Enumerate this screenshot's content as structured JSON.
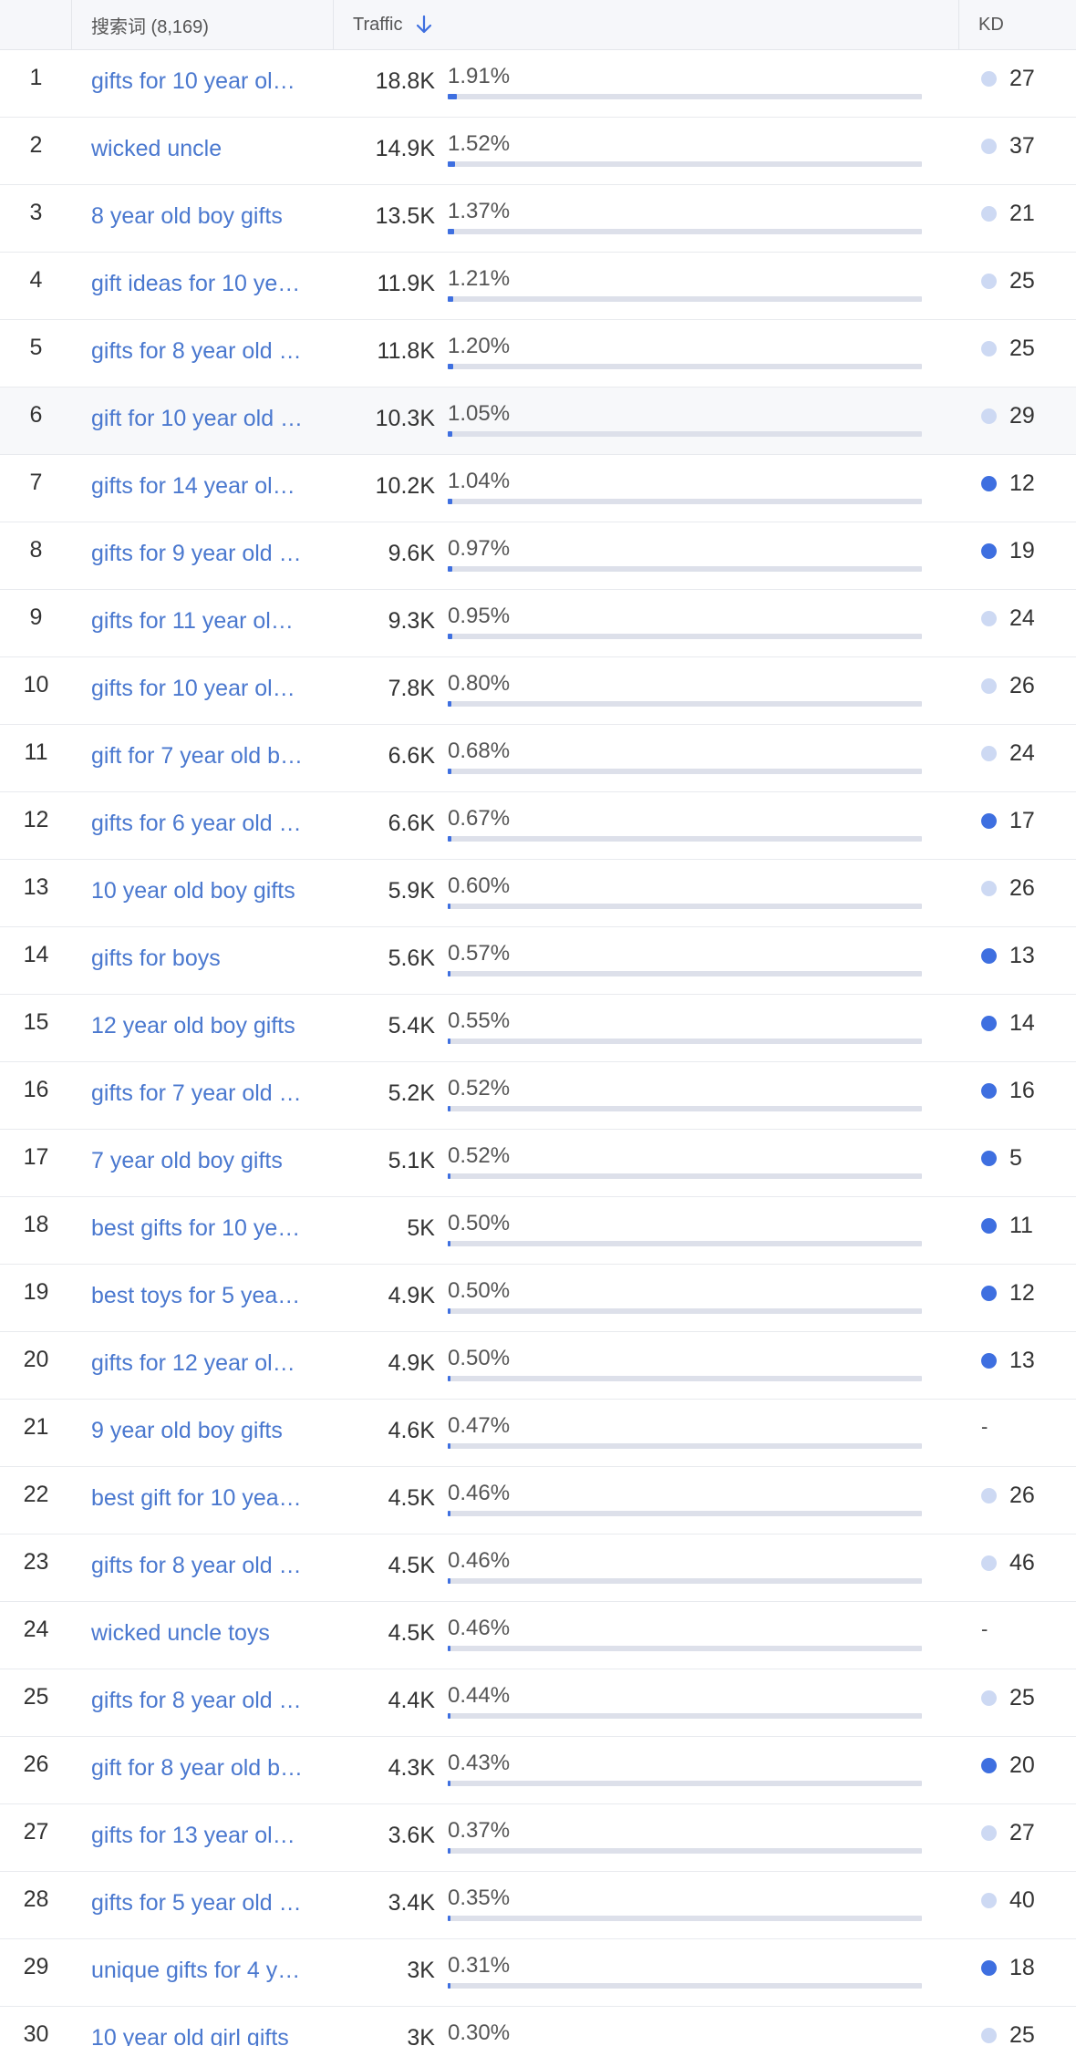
{
  "header": {
    "keyword_col": "搜索词 (8,169)",
    "traffic_col": "Traffic",
    "kd_col": "KD",
    "sort_icon": "arrow-down-icon"
  },
  "colors": {
    "link": "#4a78cf",
    "bar": "#3e6fe0",
    "bar_track": "#dde0ea",
    "dot_light": "#cdd9f3",
    "dot_dark": "#3e6fe0"
  },
  "rows": [
    {
      "num": "1",
      "keyword": "gifts for 10 year ol…",
      "volume": "18.8K",
      "share": "1.91%",
      "share_value": 1.91,
      "kd": "27",
      "kd_level": "light"
    },
    {
      "num": "2",
      "keyword": "wicked uncle",
      "volume": "14.9K",
      "share": "1.52%",
      "share_value": 1.52,
      "kd": "37",
      "kd_level": "light"
    },
    {
      "num": "3",
      "keyword": "8 year old boy gifts",
      "volume": "13.5K",
      "share": "1.37%",
      "share_value": 1.37,
      "kd": "21",
      "kd_level": "light"
    },
    {
      "num": "4",
      "keyword": "gift ideas for 10 ye…",
      "volume": "11.9K",
      "share": "1.21%",
      "share_value": 1.21,
      "kd": "25",
      "kd_level": "light"
    },
    {
      "num": "5",
      "keyword": "gifts for 8 year old …",
      "volume": "11.8K",
      "share": "1.20%",
      "share_value": 1.2,
      "kd": "25",
      "kd_level": "light"
    },
    {
      "num": "6",
      "keyword": "gift for 10 year old …",
      "volume": "10.3K",
      "share": "1.05%",
      "share_value": 1.05,
      "kd": "29",
      "kd_level": "light"
    },
    {
      "num": "7",
      "keyword": "gifts for 14 year ol…",
      "volume": "10.2K",
      "share": "1.04%",
      "share_value": 1.04,
      "kd": "12",
      "kd_level": "dark"
    },
    {
      "num": "8",
      "keyword": "gifts for 9 year old …",
      "volume": "9.6K",
      "share": "0.97%",
      "share_value": 0.97,
      "kd": "19",
      "kd_level": "dark"
    },
    {
      "num": "9",
      "keyword": "gifts for 11 year ol…",
      "volume": "9.3K",
      "share": "0.95%",
      "share_value": 0.95,
      "kd": "24",
      "kd_level": "light"
    },
    {
      "num": "10",
      "keyword": "gifts for 10 year ol…",
      "volume": "7.8K",
      "share": "0.80%",
      "share_value": 0.8,
      "kd": "26",
      "kd_level": "light"
    },
    {
      "num": "11",
      "keyword": "gift for 7 year old b…",
      "volume": "6.6K",
      "share": "0.68%",
      "share_value": 0.68,
      "kd": "24",
      "kd_level": "light"
    },
    {
      "num": "12",
      "keyword": "gifts for 6 year old …",
      "volume": "6.6K",
      "share": "0.67%",
      "share_value": 0.67,
      "kd": "17",
      "kd_level": "dark"
    },
    {
      "num": "13",
      "keyword": "10 year old boy gifts",
      "volume": "5.9K",
      "share": "0.60%",
      "share_value": 0.6,
      "kd": "26",
      "kd_level": "light"
    },
    {
      "num": "14",
      "keyword": "gifts for boys",
      "volume": "5.6K",
      "share": "0.57%",
      "share_value": 0.57,
      "kd": "13",
      "kd_level": "dark"
    },
    {
      "num": "15",
      "keyword": "12 year old boy gifts",
      "volume": "5.4K",
      "share": "0.55%",
      "share_value": 0.55,
      "kd": "14",
      "kd_level": "dark"
    },
    {
      "num": "16",
      "keyword": "gifts for 7 year old …",
      "volume": "5.2K",
      "share": "0.52%",
      "share_value": 0.52,
      "kd": "16",
      "kd_level": "dark"
    },
    {
      "num": "17",
      "keyword": "7 year old boy gifts",
      "volume": "5.1K",
      "share": "0.52%",
      "share_value": 0.52,
      "kd": "5",
      "kd_level": "dark"
    },
    {
      "num": "18",
      "keyword": "best gifts for 10 ye…",
      "volume": "5K",
      "share": "0.50%",
      "share_value": 0.5,
      "kd": "11",
      "kd_level": "dark"
    },
    {
      "num": "19",
      "keyword": "best toys for 5 yea…",
      "volume": "4.9K",
      "share": "0.50%",
      "share_value": 0.5,
      "kd": "12",
      "kd_level": "dark"
    },
    {
      "num": "20",
      "keyword": "gifts for 12 year ol…",
      "volume": "4.9K",
      "share": "0.50%",
      "share_value": 0.5,
      "kd": "13",
      "kd_level": "dark"
    },
    {
      "num": "21",
      "keyword": "9 year old boy gifts",
      "volume": "4.6K",
      "share": "0.47%",
      "share_value": 0.47,
      "kd": "-",
      "kd_level": "none"
    },
    {
      "num": "22",
      "keyword": "best gift for 10 yea…",
      "volume": "4.5K",
      "share": "0.46%",
      "share_value": 0.46,
      "kd": "26",
      "kd_level": "light"
    },
    {
      "num": "23",
      "keyword": "gifts for 8 year old …",
      "volume": "4.5K",
      "share": "0.46%",
      "share_value": 0.46,
      "kd": "46",
      "kd_level": "light"
    },
    {
      "num": "24",
      "keyword": "wicked uncle toys",
      "volume": "4.5K",
      "share": "0.46%",
      "share_value": 0.46,
      "kd": "-",
      "kd_level": "none"
    },
    {
      "num": "25",
      "keyword": "gifts for 8 year old …",
      "volume": "4.4K",
      "share": "0.44%",
      "share_value": 0.44,
      "kd": "25",
      "kd_level": "light"
    },
    {
      "num": "26",
      "keyword": "gift for 8 year old b…",
      "volume": "4.3K",
      "share": "0.43%",
      "share_value": 0.43,
      "kd": "20",
      "kd_level": "dark"
    },
    {
      "num": "27",
      "keyword": "gifts for 13 year ol…",
      "volume": "3.6K",
      "share": "0.37%",
      "share_value": 0.37,
      "kd": "27",
      "kd_level": "light"
    },
    {
      "num": "28",
      "keyword": "gifts for 5 year old …",
      "volume": "3.4K",
      "share": "0.35%",
      "share_value": 0.35,
      "kd": "40",
      "kd_level": "light"
    },
    {
      "num": "29",
      "keyword": "unique gifts for 4 y…",
      "volume": "3K",
      "share": "0.31%",
      "share_value": 0.31,
      "kd": "18",
      "kd_level": "dark"
    },
    {
      "num": "30",
      "keyword": "10 year old girl gifts",
      "volume": "3K",
      "share": "0.30%",
      "share_value": 0.3,
      "kd": "25",
      "kd_level": "light"
    }
  ]
}
